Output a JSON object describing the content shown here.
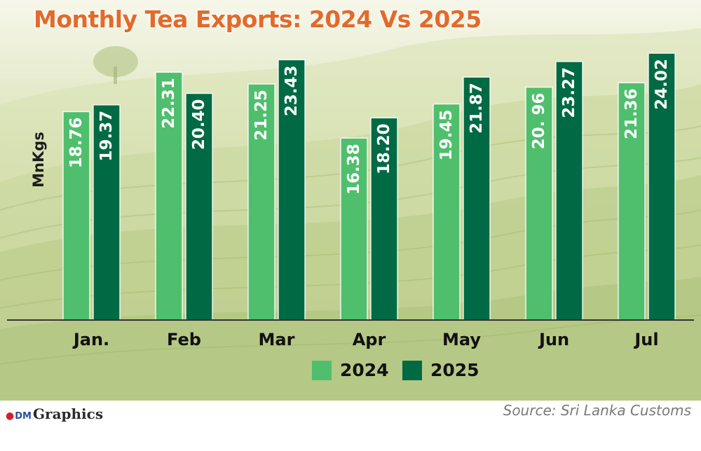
{
  "chart_data": {
    "type": "bar",
    "title": "Monthly Tea Exports: 2024 Vs 2025",
    "ylabel": "MnKgs",
    "xlabel": "",
    "categories": [
      "Jan.",
      "Feb",
      "Mar",
      "Apr",
      "May",
      "Jun",
      "Jul"
    ],
    "series": [
      {
        "name": "2024",
        "color": "#4fbf6d",
        "values": [
          18.76,
          22.31,
          21.25,
          16.38,
          19.45,
          20.96,
          21.36
        ],
        "labels": [
          "18.76",
          "22.31",
          "21.25",
          "16.38",
          "19.45",
          "20. 96",
          "21.36"
        ]
      },
      {
        "name": "2025",
        "color": "#006a45",
        "values": [
          19.37,
          20.4,
          23.43,
          18.2,
          21.87,
          23.27,
          24.02
        ],
        "labels": [
          "19.37",
          "20.40",
          "23.43",
          "18.20",
          "21.87",
          "23.27",
          "24.02"
        ]
      }
    ],
    "ylim": [
      0,
      24.02
    ],
    "grid": false,
    "legend_position": "bottom-center"
  },
  "footer": {
    "brand_dm": "DM",
    "brand_text": "Graphics",
    "source": "Source: Sri Lanka Customs"
  },
  "colors": {
    "title": "#e36a2b",
    "bar_2024": "#4fbf6d",
    "bar_2025": "#006a45",
    "axis": "#333333"
  }
}
